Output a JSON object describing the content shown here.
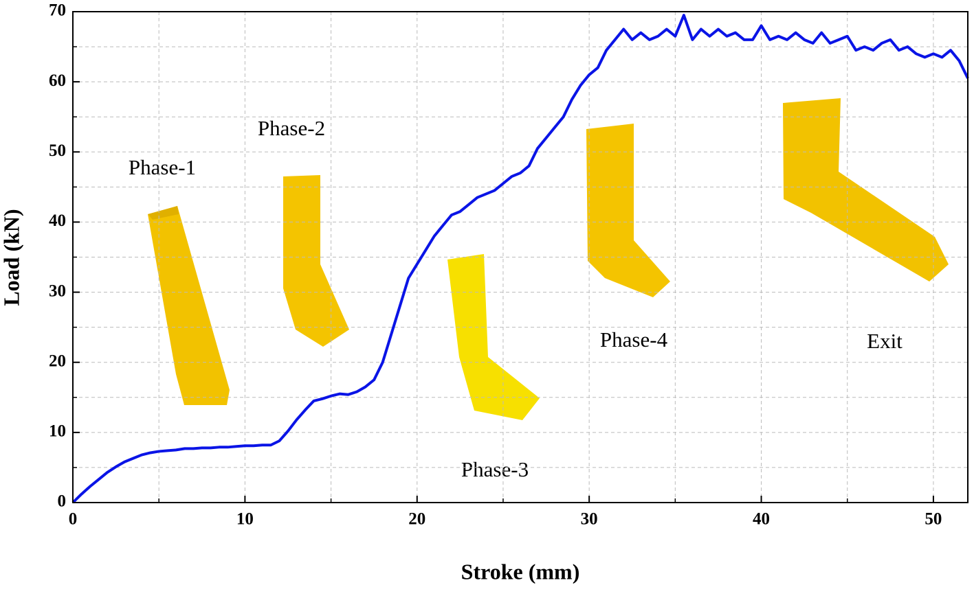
{
  "chart_data": {
    "type": "line",
    "x_label": "Stroke (mm)",
    "y_label": "Load (kN)",
    "x": [
      0,
      0.5,
      1,
      1.5,
      2,
      2.5,
      3,
      3.5,
      4,
      4.5,
      5,
      5.5,
      6,
      6.5,
      7,
      7.5,
      8,
      8.5,
      9,
      9.5,
      10,
      10.5,
      11,
      11.5,
      12,
      12.5,
      13,
      13.5,
      14,
      14.5,
      15,
      15.5,
      16,
      16.5,
      17,
      17.5,
      18,
      18.5,
      19,
      19.5,
      20,
      20.5,
      21,
      21.5,
      22,
      22.5,
      23,
      23.5,
      24,
      24.5,
      25,
      25.5,
      26,
      26.5,
      27,
      27.5,
      28,
      28.5,
      29,
      29.5,
      30,
      30.5,
      31,
      31.5,
      32,
      32.5,
      33,
      33.5,
      34,
      34.5,
      35,
      35.5,
      36,
      36.5,
      37,
      37.5,
      38,
      38.5,
      39,
      39.5,
      40,
      40.5,
      41,
      41.5,
      42,
      42.5,
      43,
      43.5,
      44,
      44.5,
      45,
      45.5,
      46,
      46.5,
      47,
      47.5,
      48,
      48.5,
      49,
      49.5,
      50,
      50.5,
      51,
      51.5,
      52
    ],
    "values": [
      0,
      1.2,
      2.3,
      3.3,
      4.3,
      5.1,
      5.8,
      6.3,
      6.8,
      7.1,
      7.3,
      7.4,
      7.5,
      7.7,
      7.7,
      7.8,
      7.8,
      7.9,
      7.9,
      8.0,
      8.1,
      8.1,
      8.2,
      8.2,
      8.8,
      10.2,
      11.8,
      13.2,
      14.5,
      14.8,
      15.2,
      15.5,
      15.4,
      15.8,
      16.5,
      17.5,
      20,
      24,
      28,
      32,
      34,
      36,
      38,
      39.5,
      41,
      41.5,
      42.5,
      43.5,
      44,
      44.5,
      45.5,
      46.5,
      47,
      48,
      50.5,
      52,
      53.5,
      55,
      57.5,
      59.5,
      61,
      62,
      64.5,
      66,
      67.5,
      66,
      67,
      66,
      66.5,
      67.5,
      66.5,
      69.5,
      66,
      67.5,
      66.5,
      67.5,
      66.5,
      67,
      66,
      66,
      68,
      66,
      66.5,
      66,
      67,
      66,
      65.5,
      67,
      65.5,
      66,
      66.5,
      64.5,
      65,
      64.5,
      65.5,
      66,
      64.5,
      65,
      64,
      63.5,
      64,
      63.5,
      64.5,
      63,
      60.5
    ],
    "color": "#0a14e6",
    "xlim": [
      0,
      52
    ],
    "ylim": [
      0,
      70
    ],
    "xticks": [
      0,
      10,
      20,
      30,
      40,
      50
    ],
    "yticks": [
      0,
      10,
      20,
      30,
      40,
      50,
      60,
      70
    ],
    "xminorticks": [
      5,
      15,
      25,
      35,
      45
    ],
    "yminorticks": [
      5,
      15,
      25,
      35,
      45,
      55,
      65
    ],
    "grid": true,
    "annotations": [
      "Phase-1",
      "Phase-2",
      "Phase-3",
      "Phase-4",
      "Exit"
    ]
  }
}
